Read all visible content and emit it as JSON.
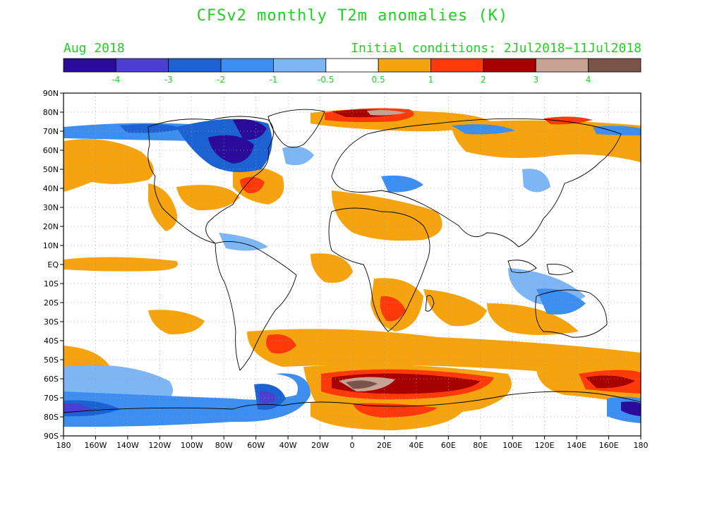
{
  "title": "CFSv2 monthly T2m anomalies (K)",
  "valid_month": "Aug 2018",
  "init_conditions": "Initial conditions: 2Jul2018−11Jul2018",
  "colorbar": {
    "colors": [
      "#2a0b9a",
      "#4a3fd1",
      "#1c62d3",
      "#3c8ef0",
      "#7eb6f5",
      "#ffffff",
      "#f5a30f",
      "#ff3a0a",
      "#a60000",
      "#c8a393",
      "#7a5448"
    ],
    "labels": [
      "-4",
      "-3",
      "-2",
      "-1",
      "-0.5",
      "0.5",
      "1",
      "2",
      "3",
      "4"
    ]
  },
  "lat_labels": [
    "90N",
    "80N",
    "70N",
    "60N",
    "50N",
    "40N",
    "30N",
    "20N",
    "10N",
    "EQ",
    "10S",
    "20S",
    "30S",
    "40S",
    "50S",
    "60S",
    "70S",
    "80S",
    "90S"
  ],
  "lon_labels": [
    "180",
    "160W",
    "140W",
    "120W",
    "100W",
    "80W",
    "60W",
    "40W",
    "20W",
    "0",
    "20E",
    "40E",
    "60E",
    "80E",
    "100E",
    "120E",
    "140E",
    "160E",
    "180"
  ]
}
